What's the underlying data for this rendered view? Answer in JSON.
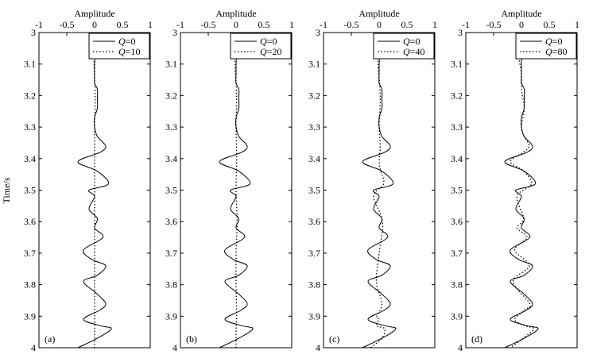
{
  "figure": {
    "ylabel": "Time/s",
    "yticks": [
      "3",
      "3.1",
      "3.2",
      "3.3",
      "3.4",
      "3.5",
      "3.6",
      "3.7",
      "3.8",
      "3.9",
      "4"
    ],
    "xticks": [
      "-1",
      "-0.5",
      "0",
      "0.5",
      "1"
    ]
  },
  "chart_data": [
    {
      "type": "line",
      "panel_label": "(a)",
      "xlabel": "Amplitude",
      "ylabel": "Time/s",
      "xlim": [
        -1,
        1
      ],
      "ylim": [
        3,
        4
      ],
      "y_inverted": true,
      "legend_position": "top-right",
      "series": [
        {
          "name": "Q=0",
          "q": "0",
          "style": "solid",
          "x": [
            0.1,
            0.05,
            -0.05,
            0.0,
            0.0,
            0.0,
            0.0,
            0.05,
            0.05,
            0.05,
            0.0,
            0.0,
            0.05,
            0.2,
            0.1,
            -0.3,
            0.05,
            0.25,
            -0.1,
            0.0,
            -0.1,
            0.05,
            0.0,
            0.15,
            -0.2,
            -0.05,
            0.2,
            0.05,
            -0.2,
            0.05,
            0.2,
            0.1,
            -0.2,
            0.1,
            0.3,
            0.05,
            -0.3
          ],
          "y": [
            3.0,
            3.02,
            3.05,
            3.08,
            3.1,
            3.13,
            3.16,
            3.18,
            3.21,
            3.24,
            3.27,
            3.3,
            3.33,
            3.36,
            3.38,
            3.41,
            3.44,
            3.48,
            3.5,
            3.52,
            3.56,
            3.59,
            3.62,
            3.65,
            3.69,
            3.72,
            3.74,
            3.77,
            3.79,
            3.83,
            3.86,
            3.88,
            3.91,
            3.93,
            3.94,
            3.97,
            4.0
          ]
        },
        {
          "name": "Q=10",
          "q": "10",
          "style": "dotted",
          "x": [
            0.03,
            0.0,
            -0.01,
            0.01,
            0.0,
            0.0,
            0.0,
            0.0,
            0.0,
            0.0,
            0.0,
            0.0,
            0.0
          ],
          "y": [
            3.0,
            3.05,
            3.1,
            3.2,
            3.3,
            3.4,
            3.5,
            3.6,
            3.7,
            3.8,
            3.9,
            3.95,
            4.0
          ]
        }
      ]
    },
    {
      "type": "line",
      "panel_label": "(b)",
      "xlabel": "Amplitude",
      "ylabel": "",
      "xlim": [
        -1,
        1
      ],
      "ylim": [
        3,
        4
      ],
      "y_inverted": true,
      "legend_position": "top-right",
      "series": [
        {
          "name": "Q=0",
          "q": "0",
          "style": "solid",
          "x": [
            0.1,
            0.05,
            -0.05,
            0.0,
            0.0,
            0.0,
            0.0,
            0.05,
            0.05,
            0.05,
            0.0,
            0.0,
            0.05,
            0.2,
            0.1,
            -0.3,
            0.05,
            0.25,
            -0.1,
            0.0,
            -0.1,
            0.05,
            0.0,
            0.15,
            -0.2,
            -0.05,
            0.2,
            0.05,
            -0.2,
            0.05,
            0.2,
            0.1,
            -0.2,
            0.1,
            0.3,
            0.05,
            -0.3
          ],
          "y": [
            3.0,
            3.02,
            3.05,
            3.08,
            3.1,
            3.13,
            3.16,
            3.18,
            3.21,
            3.24,
            3.27,
            3.3,
            3.33,
            3.36,
            3.38,
            3.41,
            3.44,
            3.48,
            3.5,
            3.52,
            3.56,
            3.59,
            3.62,
            3.65,
            3.69,
            3.72,
            3.74,
            3.77,
            3.79,
            3.83,
            3.86,
            3.88,
            3.91,
            3.93,
            3.94,
            3.97,
            4.0
          ]
        },
        {
          "name": "Q=20",
          "q": "20",
          "style": "dotted",
          "x": [
            0.04,
            0.0,
            -0.02,
            0.01,
            0.0,
            0.01,
            0.0,
            0.02,
            0.0,
            0.0,
            0.01,
            0.0,
            0.0
          ],
          "y": [
            3.0,
            3.05,
            3.1,
            3.2,
            3.3,
            3.4,
            3.5,
            3.6,
            3.7,
            3.8,
            3.9,
            3.95,
            4.0
          ]
        }
      ]
    },
    {
      "type": "line",
      "panel_label": "(c)",
      "xlabel": "Amplitude",
      "ylabel": "",
      "xlim": [
        -1,
        1
      ],
      "ylim": [
        3,
        4
      ],
      "y_inverted": true,
      "legend_position": "top-right",
      "series": [
        {
          "name": "Q=0",
          "q": "0",
          "style": "solid",
          "x": [
            0.1,
            0.05,
            -0.05,
            0.0,
            0.0,
            0.0,
            0.0,
            0.05,
            0.05,
            0.05,
            0.0,
            0.0,
            0.05,
            0.2,
            0.1,
            -0.3,
            0.05,
            0.25,
            -0.1,
            0.0,
            -0.1,
            0.05,
            0.0,
            0.15,
            -0.2,
            -0.05,
            0.2,
            0.05,
            -0.2,
            0.05,
            0.2,
            0.1,
            -0.2,
            0.1,
            0.3,
            0.05,
            -0.3
          ],
          "y": [
            3.0,
            3.02,
            3.05,
            3.08,
            3.1,
            3.13,
            3.16,
            3.18,
            3.21,
            3.24,
            3.27,
            3.3,
            3.33,
            3.36,
            3.38,
            3.41,
            3.44,
            3.48,
            3.5,
            3.52,
            3.56,
            3.59,
            3.62,
            3.65,
            3.69,
            3.72,
            3.74,
            3.77,
            3.79,
            3.83,
            3.86,
            3.88,
            3.91,
            3.93,
            3.94,
            3.97,
            4.0
          ]
        },
        {
          "name": "Q=40",
          "q": "40",
          "style": "dotted",
          "x": [
            0.05,
            0.0,
            -0.02,
            0.02,
            0.0,
            0.02,
            0.0,
            0.03,
            0.08,
            -0.1,
            0.06,
            0.0,
            -0.05,
            0.05,
            -0.04,
            0.0,
            -0.05,
            0.1,
            0.05,
            -0.15
          ],
          "y": [
            3.0,
            3.05,
            3.1,
            3.2,
            3.3,
            3.36,
            3.41,
            3.44,
            3.48,
            3.52,
            3.6,
            3.7,
            3.79,
            3.86,
            3.9,
            3.91,
            3.93,
            3.94,
            3.97,
            4.0
          ]
        }
      ]
    },
    {
      "type": "line",
      "panel_label": "(d)",
      "xlabel": "Amplitude",
      "ylabel": "",
      "xlim": [
        -1,
        1
      ],
      "ylim": [
        3,
        4
      ],
      "y_inverted": true,
      "legend_position": "top-right",
      "series": [
        {
          "name": "Q=0",
          "q": "0",
          "style": "solid",
          "x": [
            0.1,
            0.05,
            -0.05,
            0.0,
            0.0,
            0.0,
            0.0,
            0.05,
            0.05,
            0.05,
            0.0,
            0.0,
            0.05,
            0.2,
            0.1,
            -0.3,
            0.05,
            0.25,
            -0.1,
            0.0,
            -0.1,
            0.05,
            0.0,
            0.15,
            -0.2,
            -0.05,
            0.2,
            0.05,
            -0.2,
            0.05,
            0.2,
            0.1,
            -0.2,
            0.1,
            0.3,
            0.05,
            -0.3
          ],
          "y": [
            3.0,
            3.02,
            3.05,
            3.08,
            3.1,
            3.13,
            3.16,
            3.18,
            3.21,
            3.24,
            3.27,
            3.3,
            3.33,
            3.36,
            3.38,
            3.41,
            3.44,
            3.48,
            3.5,
            3.52,
            3.56,
            3.59,
            3.62,
            3.65,
            3.69,
            3.72,
            3.74,
            3.77,
            3.79,
            3.83,
            3.86,
            3.88,
            3.91,
            3.93,
            3.94,
            3.97,
            4.0
          ]
        },
        {
          "name": "Q=80",
          "q": "80",
          "style": "dotted",
          "x": [
            0.06,
            0.0,
            -0.04,
            0.0,
            0.0,
            0.05,
            0.0,
            0.05,
            0.14,
            0.03,
            -0.2,
            0.04,
            0.18,
            -0.08,
            0.04,
            -0.08,
            0.1,
            -0.12,
            0.14,
            -0.15,
            0.15,
            0.06,
            -0.12,
            0.05,
            0.22,
            0.03,
            -0.2
          ],
          "y": [
            3.0,
            3.05,
            3.08,
            3.13,
            3.18,
            3.24,
            3.3,
            3.33,
            3.36,
            3.38,
            3.41,
            3.44,
            3.48,
            3.52,
            3.59,
            3.62,
            3.65,
            3.69,
            3.74,
            3.79,
            3.86,
            3.88,
            3.91,
            3.93,
            3.94,
            3.97,
            4.0
          ]
        }
      ]
    }
  ]
}
